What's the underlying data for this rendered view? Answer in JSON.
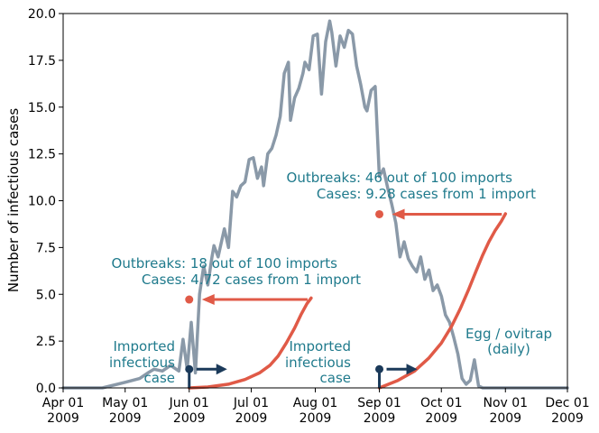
{
  "colors": {
    "egg": "#8a99a8",
    "cases": "#e05a47",
    "annotation": "#1f7a8c",
    "import": "#1b3a5a"
  },
  "chart_data": {
    "type": "line",
    "xlabel": "",
    "ylabel": "Number of infectious cases",
    "xlim": [
      "2009-04-01",
      "2009-12-01"
    ],
    "ylim": [
      0,
      20
    ],
    "grid": false,
    "x_ticks": [
      {
        "date": "2009-04-01",
        "line1": "Apr 01",
        "line2": "2009"
      },
      {
        "date": "2009-05-01",
        "line1": "May 01",
        "line2": "2009"
      },
      {
        "date": "2009-06-01",
        "line1": "Jun 01",
        "line2": "2009"
      },
      {
        "date": "2009-07-01",
        "line1": "Jul 01",
        "line2": "2009"
      },
      {
        "date": "2009-08-01",
        "line1": "Aug 01",
        "line2": "2009"
      },
      {
        "date": "2009-09-01",
        "line1": "Sep 01",
        "line2": "2009"
      },
      {
        "date": "2009-10-01",
        "line1": "Oct 01",
        "line2": "2009"
      },
      {
        "date": "2009-11-01",
        "line1": "Nov 01",
        "line2": "2009"
      },
      {
        "date": "2009-12-01",
        "line1": "Dec 01",
        "line2": "2009"
      }
    ],
    "y_ticks": [
      {
        "value": 0,
        "label": "0.0"
      },
      {
        "value": 2.5,
        "label": "2.5"
      },
      {
        "value": 5,
        "label": "5.0"
      },
      {
        "value": 7.5,
        "label": "7.5"
      },
      {
        "value": 10,
        "label": "10.0"
      },
      {
        "value": 12.5,
        "label": "12.5"
      },
      {
        "value": 15,
        "label": "15.0"
      },
      {
        "value": 17.5,
        "label": "17.5"
      },
      {
        "value": 20,
        "label": "20.0"
      }
    ],
    "series": [
      {
        "name": "Egg / ovitrap (daily)",
        "color": "#8a99a8",
        "x": [
          "2009-04-01",
          "2009-04-20",
          "2009-05-01",
          "2009-05-08",
          "2009-05-12",
          "2009-05-15",
          "2009-05-19",
          "2009-05-23",
          "2009-05-27",
          "2009-05-29",
          "2009-05-31",
          "2009-06-02",
          "2009-06-04",
          "2009-06-06",
          "2009-06-08",
          "2009-06-10",
          "2009-06-12",
          "2009-06-13",
          "2009-06-15",
          "2009-06-17",
          "2009-06-18",
          "2009-06-20",
          "2009-06-22",
          "2009-06-24",
          "2009-06-26",
          "2009-06-28",
          "2009-06-30",
          "2009-07-02",
          "2009-07-04",
          "2009-07-06",
          "2009-07-07",
          "2009-07-09",
          "2009-07-11",
          "2009-07-13",
          "2009-07-15",
          "2009-07-17",
          "2009-07-19",
          "2009-07-20",
          "2009-07-22",
          "2009-07-24",
          "2009-07-26",
          "2009-07-27",
          "2009-07-29",
          "2009-07-31",
          "2009-08-02",
          "2009-08-04",
          "2009-08-06",
          "2009-08-08",
          "2009-08-09",
          "2009-08-11",
          "2009-08-13",
          "2009-08-15",
          "2009-08-17",
          "2009-08-19",
          "2009-08-21",
          "2009-08-23",
          "2009-08-25",
          "2009-08-26",
          "2009-08-28",
          "2009-08-30",
          "2009-09-01",
          "2009-09-03",
          "2009-09-05",
          "2009-09-07",
          "2009-09-09",
          "2009-09-11",
          "2009-09-13",
          "2009-09-15",
          "2009-09-17",
          "2009-09-19",
          "2009-09-21",
          "2009-09-23",
          "2009-09-25",
          "2009-09-27",
          "2009-09-29",
          "2009-10-01",
          "2009-10-03",
          "2009-10-05",
          "2009-10-07",
          "2009-10-09",
          "2009-10-11",
          "2009-10-13",
          "2009-10-15",
          "2009-10-17",
          "2009-10-19",
          "2009-10-21",
          "2009-10-23",
          "2009-10-25",
          "2009-10-27",
          "2009-10-29",
          "2009-11-01",
          "2009-11-05",
          "2009-11-15",
          "2009-12-01"
        ],
        "y": [
          0.0,
          0.0,
          0.3,
          0.5,
          0.8,
          1.0,
          0.9,
          1.2,
          0.9,
          2.6,
          1.0,
          3.5,
          0.8,
          5.0,
          6.5,
          5.5,
          7.0,
          7.6,
          7.0,
          8.0,
          8.5,
          7.5,
          10.5,
          10.2,
          10.8,
          11.0,
          12.2,
          12.3,
          11.2,
          11.8,
          10.8,
          12.5,
          12.8,
          13.5,
          14.5,
          16.8,
          17.4,
          14.3,
          15.5,
          16.0,
          16.8,
          17.4,
          17.0,
          18.8,
          18.9,
          15.7,
          18.5,
          19.6,
          19.0,
          17.2,
          18.8,
          18.2,
          19.1,
          18.9,
          17.2,
          16.2,
          15.0,
          14.8,
          15.9,
          16.1,
          11.3,
          11.7,
          10.7,
          9.8,
          8.8,
          7.0,
          7.8,
          6.9,
          6.5,
          6.2,
          7.0,
          5.8,
          6.3,
          5.2,
          5.5,
          4.9,
          3.9,
          3.5,
          2.7,
          1.8,
          0.5,
          0.2,
          0.4,
          1.5,
          0.1,
          0.0,
          0.0,
          0.0,
          0.0,
          0.0,
          0.0,
          0.0,
          0.0,
          0.0
        ]
      },
      {
        "name": "Cases (import 1)",
        "color": "#e05a47",
        "x": [
          "2009-06-01",
          "2009-06-10",
          "2009-06-20",
          "2009-06-28",
          "2009-07-05",
          "2009-07-10",
          "2009-07-14",
          "2009-07-18",
          "2009-07-22",
          "2009-07-25",
          "2009-07-28",
          "2009-07-30"
        ],
        "y": [
          0.0,
          0.05,
          0.2,
          0.45,
          0.8,
          1.2,
          1.7,
          2.4,
          3.2,
          3.9,
          4.5,
          4.8
        ]
      },
      {
        "name": "Cases (import 2)",
        "color": "#e05a47",
        "x": [
          "2009-09-01",
          "2009-09-10",
          "2009-09-18",
          "2009-09-25",
          "2009-10-01",
          "2009-10-06",
          "2009-10-10",
          "2009-10-14",
          "2009-10-18",
          "2009-10-21",
          "2009-10-24",
          "2009-10-27",
          "2009-10-30",
          "2009-11-01"
        ],
        "y": [
          0.0,
          0.4,
          0.9,
          1.6,
          2.4,
          3.3,
          4.2,
          5.2,
          6.3,
          7.1,
          7.8,
          8.4,
          8.9,
          9.3
        ]
      }
    ],
    "annotations": [
      {
        "key": "outbreaks_1",
        "text": "Outbreaks:  18 out of 100 imports"
      },
      {
        "key": "cases_1",
        "text": "Cases:  4.72 cases from 1 import"
      },
      {
        "key": "outbreaks_2",
        "text": "Outbreaks:  46 out of 100 imports"
      },
      {
        "key": "cases_2",
        "text": "Cases:  9.28 cases from 1 import"
      },
      {
        "key": "import_1_a",
        "text": "Imported"
      },
      {
        "key": "import_1_b",
        "text": "infectious"
      },
      {
        "key": "import_1_c",
        "text": "case"
      },
      {
        "key": "import_2_a",
        "text": "Imported"
      },
      {
        "key": "import_2_b",
        "text": "infectious"
      },
      {
        "key": "import_2_c",
        "text": "case"
      },
      {
        "key": "egg_a",
        "text": "Egg / ovitrap"
      },
      {
        "key": "egg_b",
        "text": "(daily)"
      }
    ],
    "markers": [
      {
        "key": "final_cases_1",
        "date": "2009-06-01",
        "value": 4.72
      },
      {
        "key": "final_cases_2",
        "date": "2009-09-01",
        "value": 9.28
      }
    ],
    "imports": [
      {
        "key": "import_1",
        "date": "2009-06-01"
      },
      {
        "key": "import_2",
        "date": "2009-09-01"
      }
    ]
  }
}
